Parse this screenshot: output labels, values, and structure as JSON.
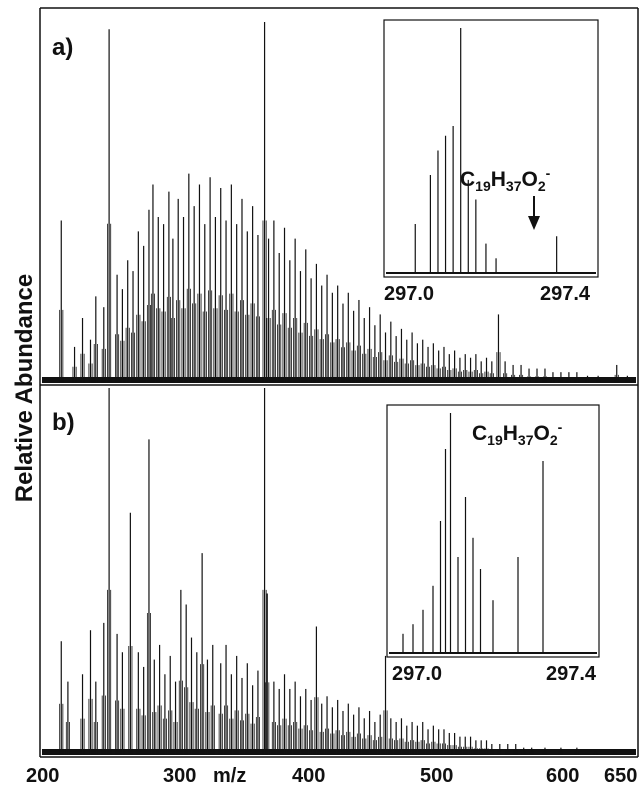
{
  "chart_data": [
    {
      "panel": "a",
      "type": "line",
      "panel_label": "a)",
      "xlabel": "m/z",
      "ylabel": "Relative Abundance",
      "xlim": [
        200,
        650
      ],
      "ylim": [
        0,
        100
      ],
      "x_ticks": [
        "200",
        "300",
        "400",
        "500",
        "600",
        "650"
      ],
      "peaks": [
        {
          "x": 216,
          "y": 45
        },
        {
          "x": 226,
          "y": 10
        },
        {
          "x": 232,
          "y": 18
        },
        {
          "x": 238,
          "y": 12
        },
        {
          "x": 242,
          "y": 24
        },
        {
          "x": 248,
          "y": 21
        },
        {
          "x": 252,
          "y": 98
        },
        {
          "x": 258,
          "y": 30
        },
        {
          "x": 262,
          "y": 26
        },
        {
          "x": 266,
          "y": 34
        },
        {
          "x": 270,
          "y": 31
        },
        {
          "x": 274,
          "y": 42
        },
        {
          "x": 278,
          "y": 38
        },
        {
          "x": 282,
          "y": 48
        },
        {
          "x": 285,
          "y": 55
        },
        {
          "x": 289,
          "y": 46
        },
        {
          "x": 293,
          "y": 44
        },
        {
          "x": 297,
          "y": 53
        },
        {
          "x": 300,
          "y": 40
        },
        {
          "x": 304,
          "y": 51
        },
        {
          "x": 308,
          "y": 46
        },
        {
          "x": 312,
          "y": 58
        },
        {
          "x": 316,
          "y": 49
        },
        {
          "x": 320,
          "y": 55
        },
        {
          "x": 324,
          "y": 44
        },
        {
          "x": 328,
          "y": 57
        },
        {
          "x": 332,
          "y": 46
        },
        {
          "x": 336,
          "y": 54
        },
        {
          "x": 340,
          "y": 45
        },
        {
          "x": 344,
          "y": 55
        },
        {
          "x": 348,
          "y": 44
        },
        {
          "x": 352,
          "y": 51
        },
        {
          "x": 356,
          "y": 42
        },
        {
          "x": 360,
          "y": 49
        },
        {
          "x": 364,
          "y": 41
        },
        {
          "x": 369,
          "y": 100
        },
        {
          "x": 372,
          "y": 40
        },
        {
          "x": 376,
          "y": 45
        },
        {
          "x": 380,
          "y": 36
        },
        {
          "x": 384,
          "y": 43
        },
        {
          "x": 388,
          "y": 34
        },
        {
          "x": 392,
          "y": 40
        },
        {
          "x": 396,
          "y": 31
        },
        {
          "x": 400,
          "y": 37
        },
        {
          "x": 404,
          "y": 29
        },
        {
          "x": 408,
          "y": 33
        },
        {
          "x": 412,
          "y": 27
        },
        {
          "x": 416,
          "y": 30
        },
        {
          "x": 420,
          "y": 25
        },
        {
          "x": 424,
          "y": 27
        },
        {
          "x": 428,
          "y": 22
        },
        {
          "x": 432,
          "y": 25
        },
        {
          "x": 436,
          "y": 20
        },
        {
          "x": 440,
          "y": 23
        },
        {
          "x": 444,
          "y": 18
        },
        {
          "x": 448,
          "y": 21
        },
        {
          "x": 452,
          "y": 16
        },
        {
          "x": 456,
          "y": 19
        },
        {
          "x": 460,
          "y": 14
        },
        {
          "x": 464,
          "y": 17
        },
        {
          "x": 468,
          "y": 13
        },
        {
          "x": 472,
          "y": 15
        },
        {
          "x": 476,
          "y": 12
        },
        {
          "x": 480,
          "y": 14
        },
        {
          "x": 484,
          "y": 11
        },
        {
          "x": 488,
          "y": 12
        },
        {
          "x": 492,
          "y": 10
        },
        {
          "x": 496,
          "y": 11
        },
        {
          "x": 500,
          "y": 9
        },
        {
          "x": 504,
          "y": 10
        },
        {
          "x": 508,
          "y": 8
        },
        {
          "x": 512,
          "y": 9
        },
        {
          "x": 516,
          "y": 7
        },
        {
          "x": 520,
          "y": 8
        },
        {
          "x": 524,
          "y": 7
        },
        {
          "x": 528,
          "y": 8
        },
        {
          "x": 532,
          "y": 6
        },
        {
          "x": 536,
          "y": 7
        },
        {
          "x": 540,
          "y": 6
        },
        {
          "x": 545,
          "y": 19
        },
        {
          "x": 550,
          "y": 6
        },
        {
          "x": 556,
          "y": 5
        },
        {
          "x": 562,
          "y": 5
        },
        {
          "x": 568,
          "y": 4
        },
        {
          "x": 574,
          "y": 4
        },
        {
          "x": 580,
          "y": 4
        },
        {
          "x": 586,
          "y": 3
        },
        {
          "x": 592,
          "y": 3
        },
        {
          "x": 598,
          "y": 3
        },
        {
          "x": 604,
          "y": 3
        },
        {
          "x": 612,
          "y": 2
        },
        {
          "x": 620,
          "y": 2
        },
        {
          "x": 634,
          "y": 5
        },
        {
          "x": 642,
          "y": 2
        }
      ],
      "inset": {
        "x_ticks": [
          "297.0",
          "297.4"
        ],
        "xlim": [
          297.0,
          297.4
        ],
        "annotation": {
          "base": "C",
          "sub1": "19",
          "mid": "H",
          "sub2": "37",
          "tail": "O",
          "sub3": "2",
          "sup": "-"
        },
        "arrow_target_x": 297.33,
        "peaks": [
          {
            "x": 297.05,
            "y": 20
          },
          {
            "x": 297.08,
            "y": 40
          },
          {
            "x": 297.095,
            "y": 50
          },
          {
            "x": 297.11,
            "y": 56
          },
          {
            "x": 297.125,
            "y": 60
          },
          {
            "x": 297.14,
            "y": 100
          },
          {
            "x": 297.155,
            "y": 38
          },
          {
            "x": 297.17,
            "y": 30
          },
          {
            "x": 297.19,
            "y": 12
          },
          {
            "x": 297.21,
            "y": 6
          },
          {
            "x": 297.33,
            "y": 15
          }
        ]
      }
    },
    {
      "panel": "b",
      "type": "line",
      "panel_label": "b)",
      "xlabel": "m/z",
      "ylabel": "Relative Abundance",
      "xlim": [
        200,
        650
      ],
      "ylim": [
        0,
        100
      ],
      "x_ticks": [
        "200",
        "300",
        "400",
        "500",
        "600",
        "650"
      ],
      "peaks": [
        {
          "x": 216,
          "y": 31
        },
        {
          "x": 221,
          "y": 20
        },
        {
          "x": 232,
          "y": 22
        },
        {
          "x": 238,
          "y": 34
        },
        {
          "x": 242,
          "y": 20
        },
        {
          "x": 248,
          "y": 36
        },
        {
          "x": 252,
          "y": 100
        },
        {
          "x": 258,
          "y": 33
        },
        {
          "x": 262,
          "y": 28
        },
        {
          "x": 268,
          "y": 66
        },
        {
          "x": 274,
          "y": 28
        },
        {
          "x": 278,
          "y": 24
        },
        {
          "x": 282,
          "y": 86
        },
        {
          "x": 286,
          "y": 26
        },
        {
          "x": 290,
          "y": 30
        },
        {
          "x": 294,
          "y": 22
        },
        {
          "x": 298,
          "y": 27
        },
        {
          "x": 302,
          "y": 20
        },
        {
          "x": 306,
          "y": 45
        },
        {
          "x": 310,
          "y": 41
        },
        {
          "x": 314,
          "y": 32
        },
        {
          "x": 318,
          "y": 28
        },
        {
          "x": 322,
          "y": 55
        },
        {
          "x": 326,
          "y": 26
        },
        {
          "x": 330,
          "y": 30
        },
        {
          "x": 336,
          "y": 25
        },
        {
          "x": 340,
          "y": 30
        },
        {
          "x": 344,
          "y": 22
        },
        {
          "x": 348,
          "y": 27
        },
        {
          "x": 352,
          "y": 21
        },
        {
          "x": 356,
          "y": 25
        },
        {
          "x": 360,
          "y": 19
        },
        {
          "x": 364,
          "y": 23
        },
        {
          "x": 369,
          "y": 100
        },
        {
          "x": 371,
          "y": 44
        },
        {
          "x": 376,
          "y": 20
        },
        {
          "x": 380,
          "y": 18
        },
        {
          "x": 384,
          "y": 22
        },
        {
          "x": 388,
          "y": 18
        },
        {
          "x": 392,
          "y": 20
        },
        {
          "x": 396,
          "y": 16
        },
        {
          "x": 400,
          "y": 18
        },
        {
          "x": 404,
          "y": 15
        },
        {
          "x": 408,
          "y": 35
        },
        {
          "x": 412,
          "y": 14
        },
        {
          "x": 416,
          "y": 16
        },
        {
          "x": 420,
          "y": 13
        },
        {
          "x": 424,
          "y": 15
        },
        {
          "x": 428,
          "y": 12
        },
        {
          "x": 432,
          "y": 14
        },
        {
          "x": 436,
          "y": 11
        },
        {
          "x": 440,
          "y": 13
        },
        {
          "x": 444,
          "y": 10
        },
        {
          "x": 448,
          "y": 12
        },
        {
          "x": 452,
          "y": 9
        },
        {
          "x": 456,
          "y": 11
        },
        {
          "x": 460,
          "y": 27
        },
        {
          "x": 464,
          "y": 10
        },
        {
          "x": 468,
          "y": 9
        },
        {
          "x": 472,
          "y": 10
        },
        {
          "x": 476,
          "y": 8
        },
        {
          "x": 480,
          "y": 9
        },
        {
          "x": 484,
          "y": 8
        },
        {
          "x": 488,
          "y": 9
        },
        {
          "x": 492,
          "y": 7
        },
        {
          "x": 496,
          "y": 8
        },
        {
          "x": 500,
          "y": 7
        },
        {
          "x": 504,
          "y": 7
        },
        {
          "x": 508,
          "y": 6
        },
        {
          "x": 512,
          "y": 6
        },
        {
          "x": 516,
          "y": 5
        },
        {
          "x": 520,
          "y": 5
        },
        {
          "x": 524,
          "y": 5
        },
        {
          "x": 528,
          "y": 4
        },
        {
          "x": 532,
          "y": 4
        },
        {
          "x": 536,
          "y": 4
        },
        {
          "x": 540,
          "y": 3
        },
        {
          "x": 546,
          "y": 3
        },
        {
          "x": 552,
          "y": 3
        },
        {
          "x": 558,
          "y": 3
        },
        {
          "x": 564,
          "y": 2
        },
        {
          "x": 570,
          "y": 2
        },
        {
          "x": 580,
          "y": 2
        },
        {
          "x": 592,
          "y": 2
        },
        {
          "x": 604,
          "y": 2
        },
        {
          "x": 618,
          "y": 1
        },
        {
          "x": 632,
          "y": 1
        }
      ],
      "inset": {
        "x_ticks": [
          "297.0",
          "297.4"
        ],
        "xlim": [
          297.0,
          297.4
        ],
        "annotation": {
          "base": "C",
          "sub1": "19",
          "mid": "H",
          "sub2": "37",
          "tail": "O",
          "sub3": "2",
          "sup": "-"
        },
        "peaks": [
          {
            "x": 297.02,
            "y": 8
          },
          {
            "x": 297.04,
            "y": 12
          },
          {
            "x": 297.06,
            "y": 18
          },
          {
            "x": 297.08,
            "y": 28
          },
          {
            "x": 297.095,
            "y": 55
          },
          {
            "x": 297.105,
            "y": 85
          },
          {
            "x": 297.115,
            "y": 100
          },
          {
            "x": 297.13,
            "y": 40
          },
          {
            "x": 297.145,
            "y": 65
          },
          {
            "x": 297.16,
            "y": 48
          },
          {
            "x": 297.175,
            "y": 35
          },
          {
            "x": 297.2,
            "y": 22
          },
          {
            "x": 297.25,
            "y": 40
          },
          {
            "x": 297.3,
            "y": 80
          }
        ]
      }
    }
  ]
}
